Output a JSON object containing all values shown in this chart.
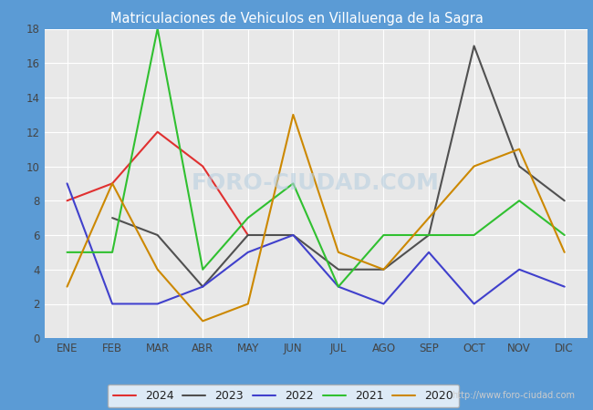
{
  "title": "Matriculaciones de Vehiculos en Villaluenga de la Sagra",
  "title_color": "white",
  "header_bg": "#5b9bd5",
  "plot_bg": "#e8e8e8",
  "grid_color": "white",
  "months": [
    "ENE",
    "FEB",
    "MAR",
    "ABR",
    "MAY",
    "JUN",
    "JUL",
    "AGO",
    "SEP",
    "OCT",
    "NOV",
    "DIC"
  ],
  "series": {
    "2024": {
      "color": "#e03030",
      "data": [
        8,
        9,
        12,
        10,
        6,
        null,
        null,
        null,
        null,
        null,
        null,
        null
      ]
    },
    "2023": {
      "color": "#505050",
      "data": [
        null,
        7,
        6,
        3,
        6,
        6,
        4,
        4,
        6,
        17,
        10,
        8
      ]
    },
    "2022": {
      "color": "#4040cc",
      "data": [
        9,
        2,
        2,
        3,
        5,
        6,
        3,
        2,
        5,
        2,
        4,
        3
      ]
    },
    "2021": {
      "color": "#30c030",
      "data": [
        5,
        5,
        18,
        4,
        7,
        9,
        3,
        6,
        6,
        6,
        8,
        6
      ]
    },
    "2020": {
      "color": "#cc8800",
      "data": [
        3,
        9,
        4,
        1,
        2,
        13,
        5,
        4,
        7,
        10,
        11,
        5
      ]
    }
  },
  "ylim": [
    0,
    18
  ],
  "yticks": [
    0,
    2,
    4,
    6,
    8,
    10,
    12,
    14,
    16,
    18
  ],
  "watermark_url": "http://www.foro-ciudad.com",
  "watermark_text": "FORO-CIUDAD.COM"
}
